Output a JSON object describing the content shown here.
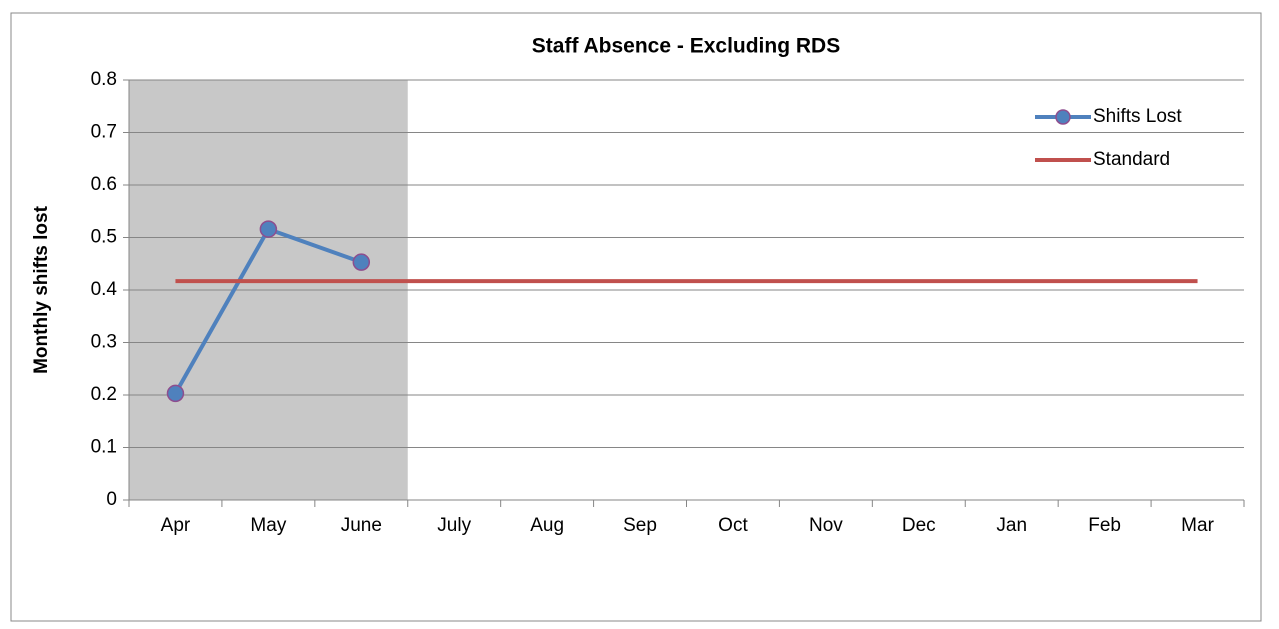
{
  "chart_data": {
    "type": "line",
    "title": "Staff Absence - Excluding RDS",
    "y_label": "Monthly shifts lost",
    "categories": [
      "Apr",
      "May",
      "June",
      "July",
      "Aug",
      "Sep",
      "Oct",
      "Nov",
      "Dec",
      "Jan",
      "Feb",
      "Mar"
    ],
    "series": [
      {
        "name": "Shifts Lost",
        "color": "#4f81bd",
        "marker": true,
        "values": [
          0.203,
          0.516,
          0.453,
          null,
          null,
          null,
          null,
          null,
          null,
          null,
          null,
          null
        ]
      },
      {
        "name": "Standard",
        "color": "#c0504d",
        "marker": false,
        "values": [
          0.417,
          0.417,
          0.417,
          0.417,
          0.417,
          0.417,
          0.417,
          0.417,
          0.417,
          0.417,
          0.417,
          0.417
        ]
      }
    ],
    "ylim": [
      0,
      0.8
    ],
    "yticks": [
      0,
      0.1,
      0.2,
      0.3,
      0.4,
      0.5,
      0.6,
      0.7,
      0.8
    ],
    "grid": true,
    "legend": "top-right",
    "shaded_range": {
      "from": "Apr",
      "to": "June",
      "color": "#c8c8c8"
    }
  }
}
